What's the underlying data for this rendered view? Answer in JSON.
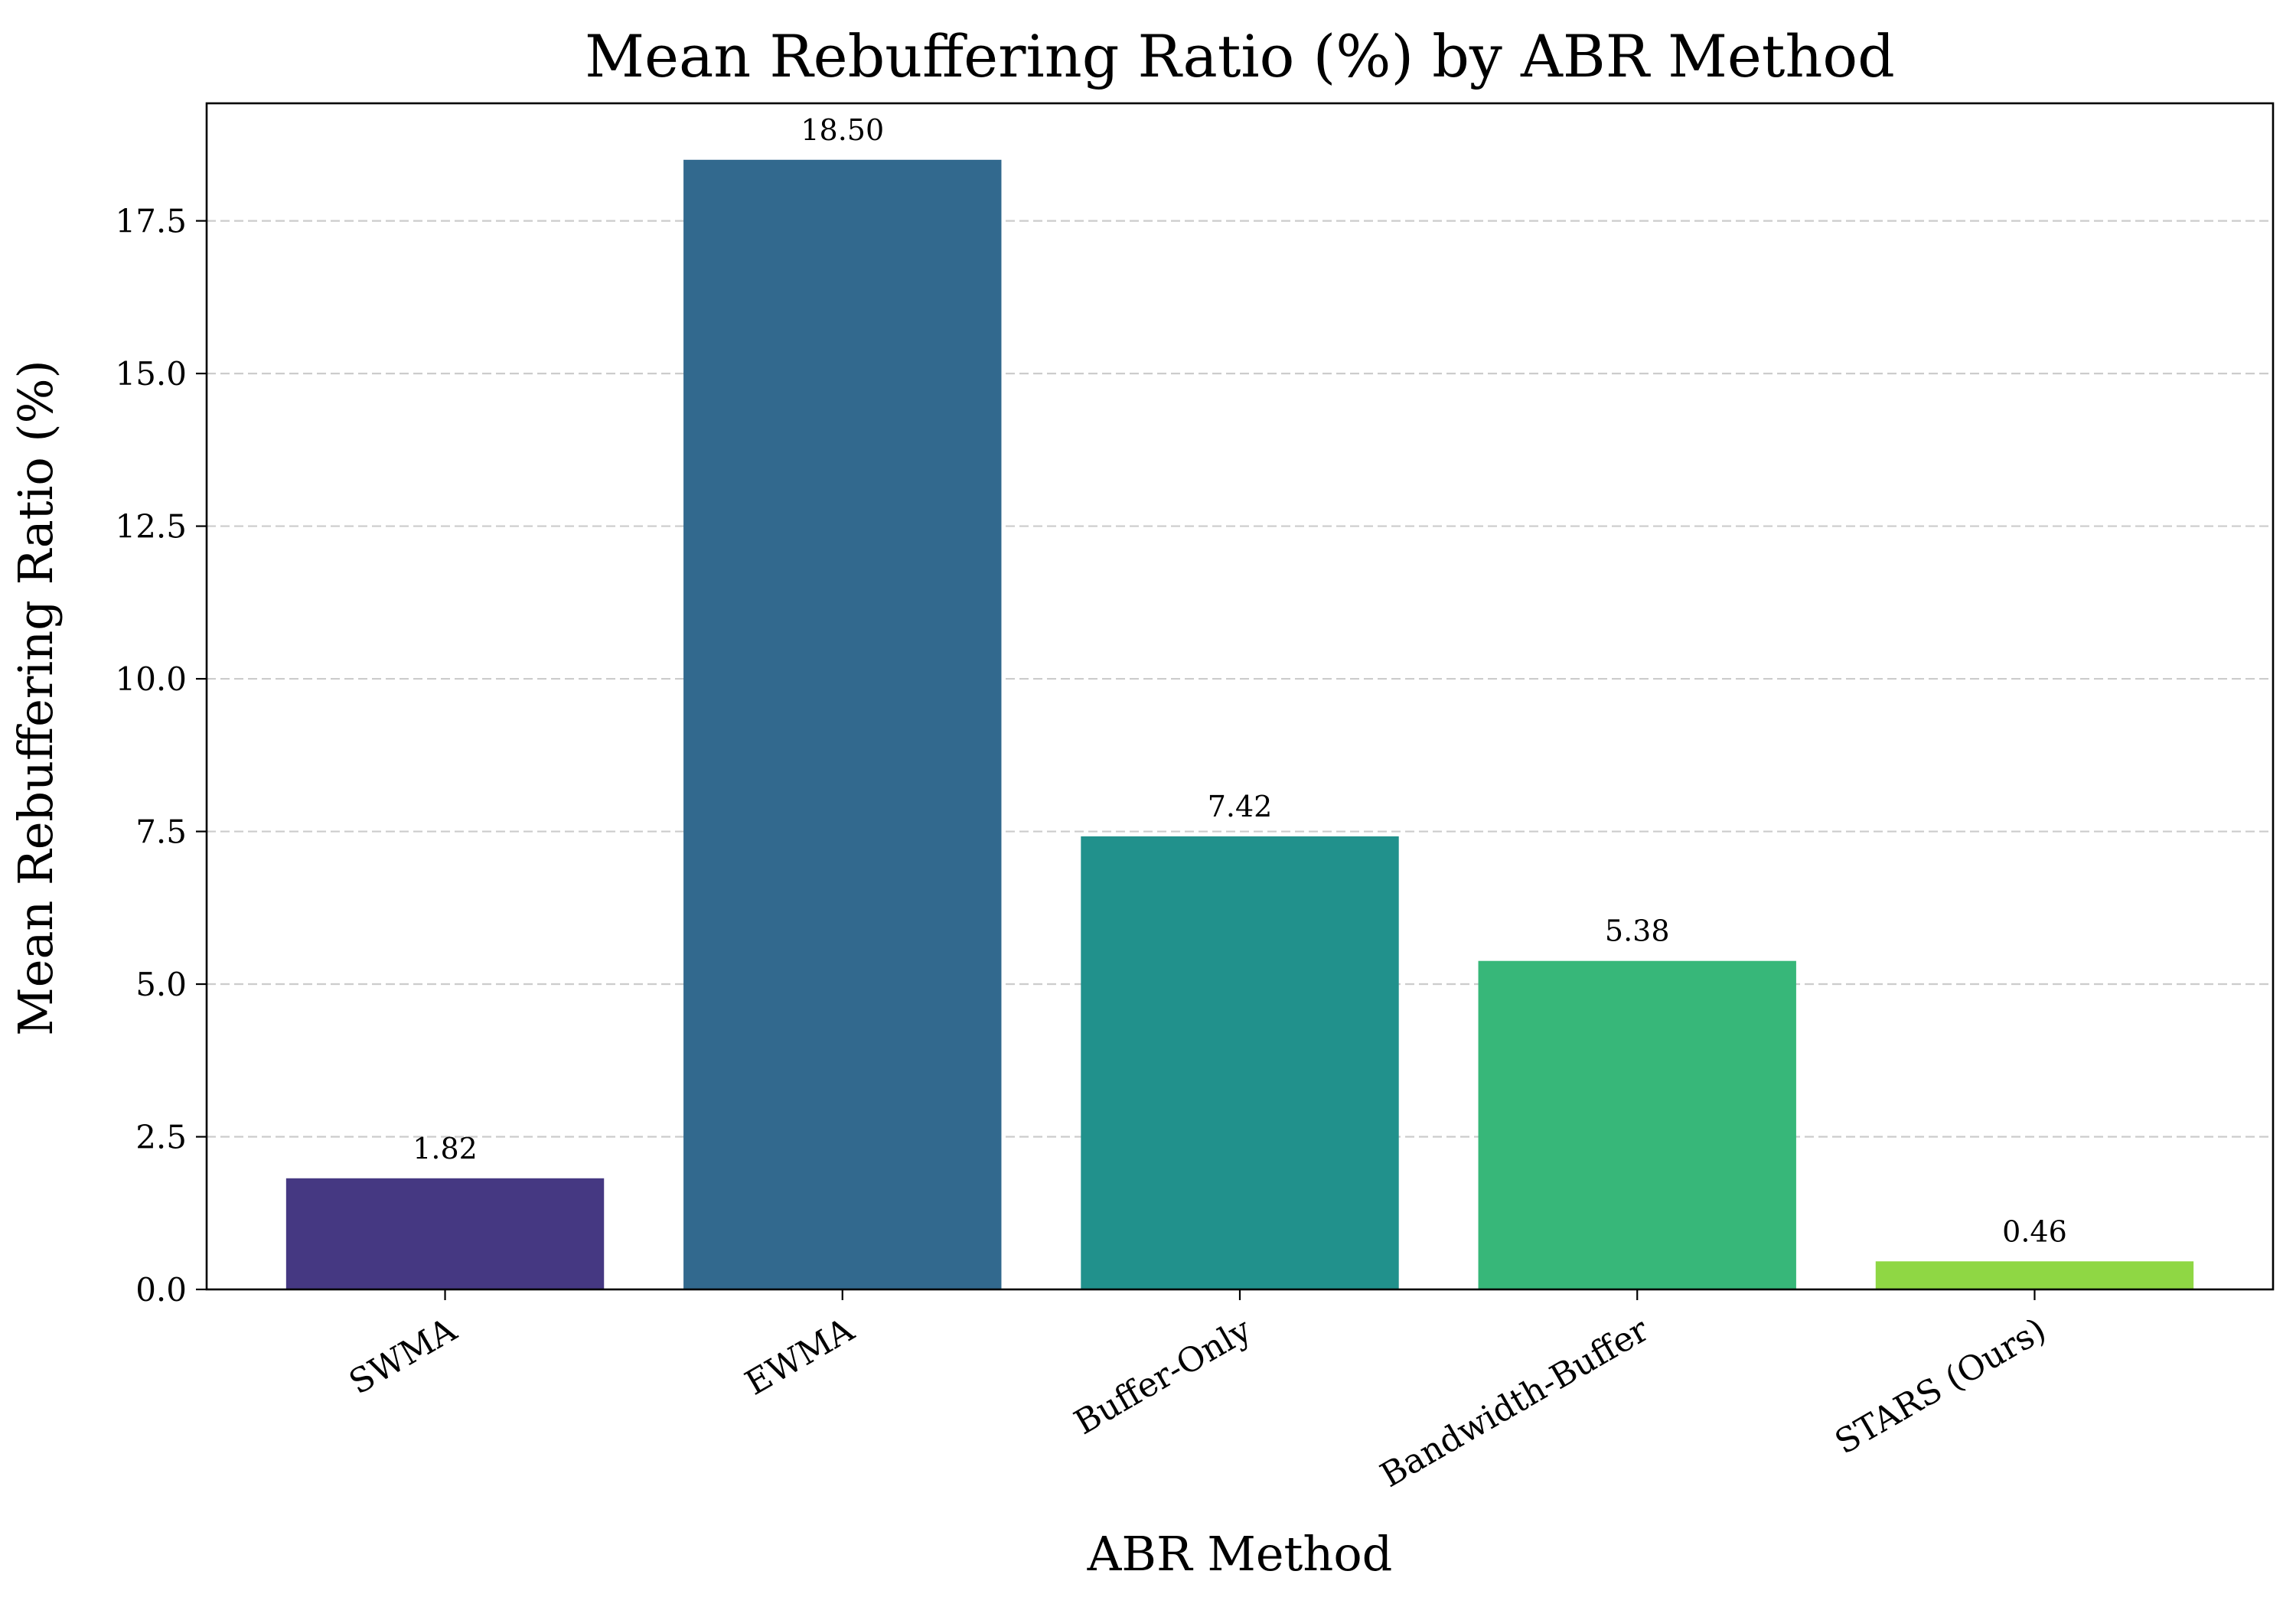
{
  "chart_data": {
    "type": "bar",
    "title": "Mean Rebuffering Ratio (%) by ABR Method",
    "xlabel": "ABR Method",
    "ylabel": "Mean Rebuffering Ratio (%)",
    "categories": [
      "SWMA",
      "EWMA",
      "Buffer-Only",
      "Bandwidth-Buffer",
      "STARS (Ours)"
    ],
    "values": [
      1.82,
      18.5,
      7.42,
      5.38,
      0.46
    ],
    "value_labels": [
      "1.82",
      "18.50",
      "7.42",
      "5.38",
      "0.46"
    ],
    "colors": [
      "#453882",
      "#32698e",
      "#21918c",
      "#37b779",
      "#8fd744"
    ],
    "ylim": [
      0,
      19.425
    ],
    "yticks": [
      0,
      2.5,
      5,
      7.5,
      10,
      12.5,
      15,
      17.5
    ],
    "ytick_labels": [
      "0.0",
      "2.5",
      "5.0",
      "7.5",
      "10.0",
      "12.5",
      "15.0",
      "17.5"
    ],
    "grid": "y-dashed",
    "legend": "none"
  }
}
